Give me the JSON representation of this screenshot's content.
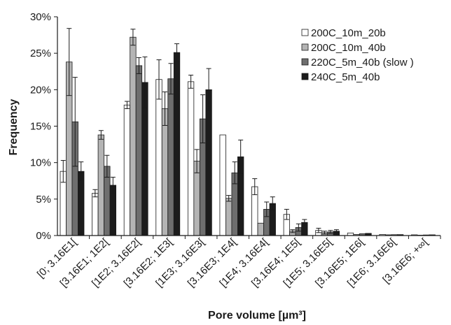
{
  "chart_data": {
    "type": "bar",
    "title": "",
    "xlabel": "Pore volume [µm³]",
    "ylabel": "Frequency",
    "ylim": [
      0,
      30
    ],
    "y_ticks": [
      "0%",
      "5%",
      "10%",
      "15%",
      "20%",
      "25%",
      "30%"
    ],
    "y_tick_values": [
      0,
      5,
      10,
      15,
      20,
      25,
      30
    ],
    "grid": false,
    "legend_position": "top-right",
    "categories": [
      "[0; 3.16E1[",
      "[3.16E1; 1E2[",
      "[1E2; 3.16E2[",
      "[3.16E2; 1E3[",
      "[1E3; 3.16E3[",
      "[3.16E3; 1E4[",
      "[1E4; 3.16E4[",
      "[3.16E4; 1E5[",
      "[1E5; 3.16E5[",
      "[3.16E5; 1E6[",
      "[1E6; 3.16E6[",
      "[3.16E6; +∞["
    ],
    "series": [
      {
        "name": "200C_10m_20b",
        "color": "#ffffff",
        "values": [
          8.8,
          5.8,
          17.9,
          21.4,
          21.1,
          13.8,
          6.7,
          2.9,
          0.7,
          0.35,
          0.15,
          0.1
        ],
        "errors": [
          1.5,
          0.5,
          0.5,
          2.7,
          0.9,
          0.1,
          1.1,
          0.7,
          0.3,
          0.1,
          0.05,
          0.05
        ]
      },
      {
        "name": "200C_10m_40b",
        "color": "#b4b4b4",
        "values": [
          23.8,
          13.8,
          27.2,
          17.4,
          10.2,
          5.1,
          1.7,
          0.6,
          0.4,
          0.15,
          0.1,
          0.05
        ],
        "errors": [
          4.6,
          0.6,
          1.1,
          2.3,
          1.6,
          0.4,
          0.1,
          0.2,
          0.2,
          0.05,
          0.05,
          0.02
        ]
      },
      {
        "name": "220C_5m_40b (slow )",
        "color": "#6e6e6e",
        "values": [
          15.6,
          9.5,
          23.3,
          21.5,
          16.0,
          8.6,
          3.6,
          1.1,
          0.5,
          0.25,
          0.12,
          0.08
        ],
        "errors": [
          6.1,
          1.5,
          1.1,
          2.1,
          3.3,
          1.5,
          1.0,
          0.5,
          0.2,
          0.05,
          0.04,
          0.03
        ]
      },
      {
        "name": "240C_5m_40b",
        "color": "#1c1c1c",
        "values": [
          8.8,
          6.9,
          21.0,
          25.1,
          20.0,
          10.8,
          4.4,
          1.8,
          0.6,
          0.3,
          0.13,
          0.1
        ],
        "errors": [
          1.3,
          1.1,
          3.5,
          1.2,
          2.9,
          2.3,
          0.9,
          0.4,
          0.2,
          0.05,
          0.04,
          0.03
        ]
      }
    ]
  }
}
